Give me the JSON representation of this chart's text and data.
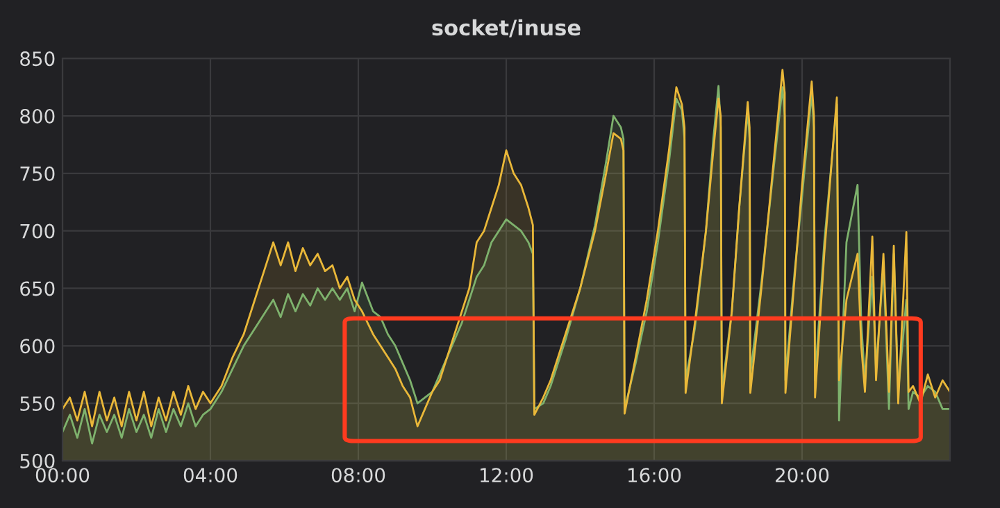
{
  "chart_data": {
    "type": "area",
    "title": "socket/inuse",
    "x": [
      0.0,
      0.2,
      0.4,
      0.6,
      0.8,
      1.0,
      1.2,
      1.4,
      1.6,
      1.8,
      2.0,
      2.2,
      2.4,
      2.6,
      2.8,
      3.0,
      3.2,
      3.4,
      3.6,
      3.8,
      4.0,
      4.3,
      4.6,
      4.9,
      5.2,
      5.5,
      5.7,
      5.9,
      6.1,
      6.3,
      6.5,
      6.7,
      6.9,
      7.1,
      7.3,
      7.5,
      7.7,
      7.9,
      8.1,
      8.4,
      8.6,
      8.8,
      9.0,
      9.2,
      9.4,
      9.6,
      9.8,
      10.0,
      10.2,
      10.4,
      10.6,
      10.8,
      11.0,
      11.2,
      11.4,
      11.6,
      11.8,
      12.0,
      12.2,
      12.4,
      12.6,
      12.72,
      12.76,
      13.0,
      13.2,
      13.6,
      14.0,
      14.4,
      14.7,
      14.9,
      15.1,
      15.17,
      15.2,
      15.5,
      15.8,
      16.1,
      16.4,
      16.6,
      16.75,
      16.82,
      16.85,
      17.1,
      17.4,
      17.6,
      17.74,
      17.8,
      17.83,
      18.1,
      18.3,
      18.53,
      18.58,
      18.6,
      18.9,
      19.2,
      19.47,
      19.53,
      19.55,
      19.8,
      20.0,
      20.26,
      20.32,
      20.35,
      20.6,
      20.94,
      21.0,
      21.2,
      21.5,
      21.6,
      21.7,
      21.9,
      22.0,
      22.2,
      22.35,
      22.48,
      22.6,
      22.82,
      22.88,
      23.0,
      23.2,
      23.4,
      23.6,
      23.8,
      24.0
    ],
    "series": [
      {
        "color": "#7eb26d",
        "values": [
          525,
          540,
          520,
          545,
          515,
          540,
          525,
          540,
          520,
          545,
          525,
          540,
          520,
          545,
          525,
          545,
          530,
          550,
          530,
          540,
          545,
          560,
          580,
          600,
          615,
          630,
          640,
          625,
          645,
          630,
          645,
          635,
          650,
          640,
          650,
          640,
          650,
          630,
          655,
          630,
          625,
          610,
          600,
          585,
          570,
          550,
          555,
          560,
          575,
          590,
          605,
          620,
          640,
          660,
          670,
          690,
          700,
          710,
          705,
          700,
          690,
          680,
          545,
          550,
          565,
          605,
          650,
          705,
          760,
          800,
          790,
          780,
          545,
          585,
          630,
          690,
          760,
          815,
          805,
          780,
          570,
          615,
          700,
          780,
          826,
          790,
          560,
          630,
          720,
          805,
          780,
          575,
          655,
          745,
          825,
          800,
          570,
          665,
          730,
          820,
          790,
          570,
          690,
          810,
          535,
          690,
          740,
          620,
          570,
          660,
          580,
          670,
          545,
          680,
          560,
          640,
          545,
          560,
          555,
          565,
          560,
          545,
          545
        ]
      },
      {
        "color": "#eab839",
        "values": [
          545,
          555,
          535,
          560,
          530,
          560,
          535,
          555,
          530,
          560,
          535,
          560,
          530,
          555,
          535,
          560,
          540,
          565,
          545,
          560,
          550,
          565,
          590,
          610,
          640,
          670,
          690,
          670,
          690,
          665,
          685,
          670,
          680,
          665,
          670,
          650,
          660,
          640,
          630,
          610,
          600,
          590,
          580,
          565,
          555,
          530,
          545,
          560,
          570,
          590,
          610,
          630,
          650,
          690,
          700,
          720,
          740,
          770,
          750,
          740,
          720,
          705,
          540,
          555,
          570,
          610,
          650,
          700,
          750,
          785,
          780,
          770,
          541,
          590,
          640,
          700,
          770,
          825,
          810,
          790,
          559,
          620,
          700,
          770,
          815,
          800,
          550,
          630,
          720,
          812,
          790,
          559,
          650,
          750,
          840,
          820,
          559,
          660,
          740,
          830,
          800,
          555,
          680,
          816,
          570,
          640,
          680,
          600,
          560,
          695,
          570,
          680,
          560,
          687,
          550,
          699,
          560,
          565,
          550,
          575,
          555,
          570,
          560
        ]
      }
    ],
    "xlim": [
      0,
      24
    ],
    "xticks": [
      {
        "value": 0,
        "label": "00:00"
      },
      {
        "value": 4,
        "label": "04:00"
      },
      {
        "value": 8,
        "label": "08:00"
      },
      {
        "value": 12,
        "label": "12:00"
      },
      {
        "value": 16,
        "label": "16:00"
      },
      {
        "value": 20,
        "label": "20:00"
      }
    ],
    "ylim": [
      500,
      850
    ],
    "yticks": [
      500,
      550,
      600,
      650,
      700,
      750,
      800,
      850
    ],
    "grid": true
  }
}
